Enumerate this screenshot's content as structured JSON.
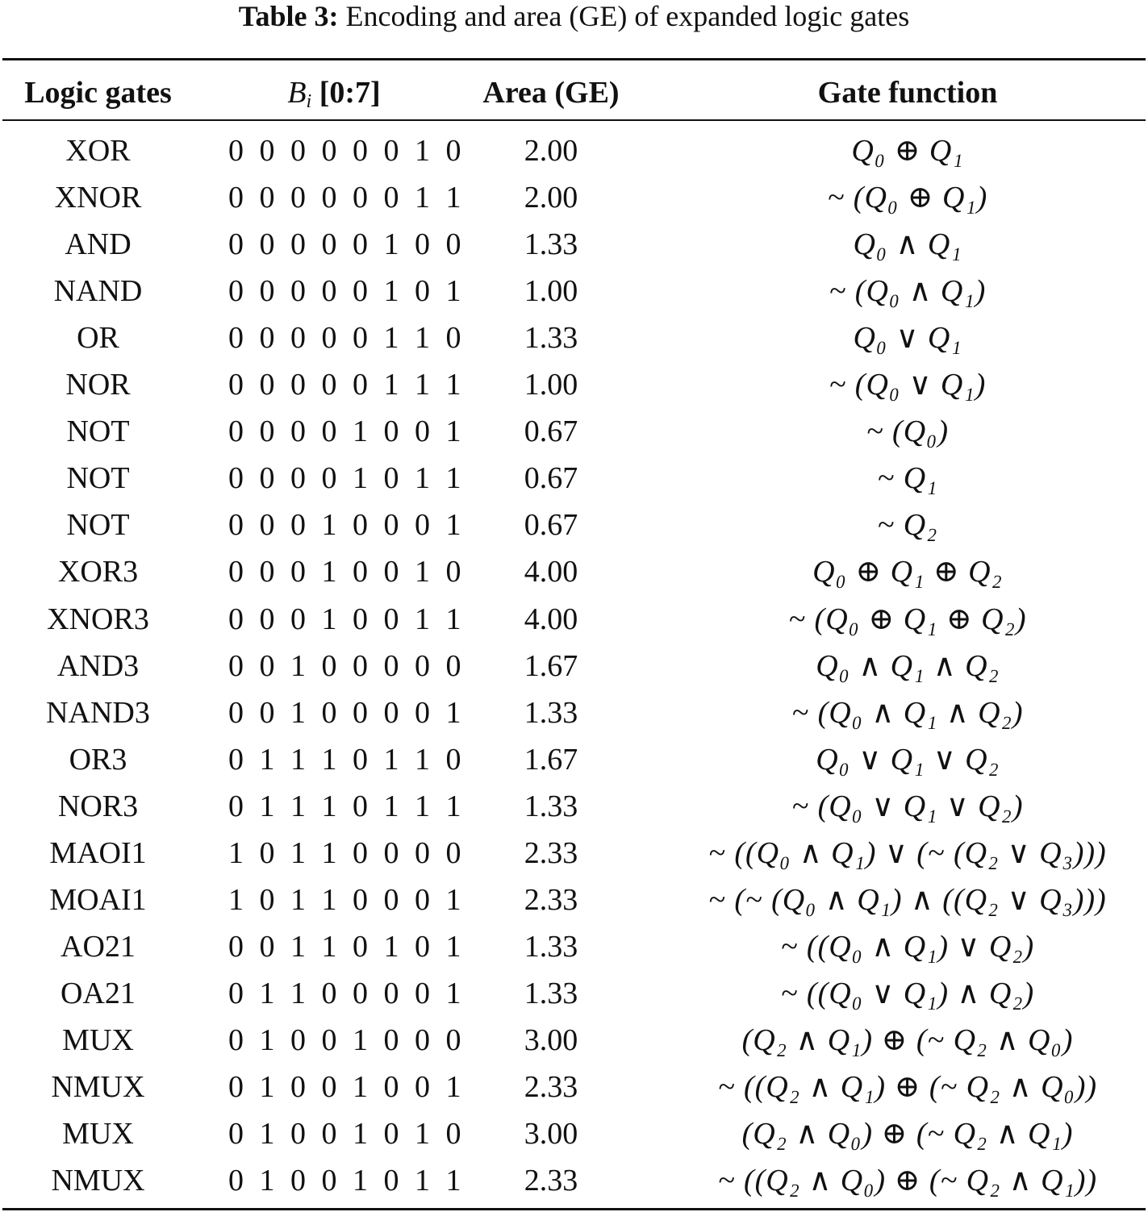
{
  "caption": {
    "label": "Table 3:",
    "text": "Encoding and area (GE) of expanded logic gates"
  },
  "table": {
    "headers": {
      "gate": "Logic gates",
      "bits_var": "B",
      "bits_sub": "i",
      "bits_range": " [0:7]",
      "area": "Area (GE)",
      "function": "Gate function"
    },
    "rows": [
      {
        "gate": "XOR",
        "bits": "0 0 0 0 0 0 1 0",
        "area": "2.00",
        "func": "Q₀ ⊕ Q₁"
      },
      {
        "gate": "XNOR",
        "bits": "0 0 0 0 0 0 1 1",
        "area": "2.00",
        "func": "~ (Q₀ ⊕ Q₁)"
      },
      {
        "gate": "AND",
        "bits": "0 0 0 0 0 1 0 0",
        "area": "1.33",
        "func": "Q₀ ∧ Q₁"
      },
      {
        "gate": "NAND",
        "bits": "0 0 0 0 0 1 0 1",
        "area": "1.00",
        "func": "~ (Q₀ ∧ Q₁)"
      },
      {
        "gate": "OR",
        "bits": "0 0 0 0 0 1 1 0",
        "area": "1.33",
        "func": "Q₀ ∨ Q₁"
      },
      {
        "gate": "NOR",
        "bits": "0 0 0 0 0 1 1 1",
        "area": "1.00",
        "func": "~ (Q₀ ∨ Q₁)"
      },
      {
        "gate": "NOT",
        "bits": "0 0 0 0 1 0 0 1",
        "area": "0.67",
        "func": "~ (Q₀)"
      },
      {
        "gate": "NOT",
        "bits": "0 0 0 0 1 0 1 1",
        "area": "0.67",
        "func": "~ Q₁"
      },
      {
        "gate": "NOT",
        "bits": "0 0 0 1 0 0 0 1",
        "area": "0.67",
        "func": "~ Q₂"
      },
      {
        "gate": "XOR3",
        "bits": "0 0 0 1 0 0 1 0",
        "area": "4.00",
        "func": "Q₀ ⊕ Q₁ ⊕ Q₂"
      },
      {
        "gate": "XNOR3",
        "bits": "0 0 0 1 0 0 1 1",
        "area": "4.00",
        "func": "~ (Q₀ ⊕ Q₁ ⊕ Q₂)"
      },
      {
        "gate": "AND3",
        "bits": "0 0 1 0 0 0 0 0",
        "area": "1.67",
        "func": "Q₀ ∧ Q₁ ∧ Q₂"
      },
      {
        "gate": "NAND3",
        "bits": "0 0 1 0 0 0 0 1",
        "area": "1.33",
        "func": "~ (Q₀ ∧ Q₁ ∧ Q₂)"
      },
      {
        "gate": "OR3",
        "bits": "0 1 1 1 0 1 1 0",
        "area": "1.67",
        "func": "Q₀ ∨ Q₁ ∨ Q₂"
      },
      {
        "gate": "NOR3",
        "bits": "0 1 1 1 0 1 1 1",
        "area": "1.33",
        "func": "~ (Q₀ ∨ Q₁ ∨ Q₂)"
      },
      {
        "gate": "MAOI1",
        "bits": "1 0 1 1 0 0 0 0",
        "area": "2.33",
        "func": "~ ((Q₀ ∧ Q₁) ∨ (~ (Q₂ ∨ Q₃)))"
      },
      {
        "gate": "MOAI1",
        "bits": "1 0 1 1 0 0 0 1",
        "area": "2.33",
        "func": "~ (~ (Q₀ ∧  Q₁) ∧ ((Q₂ ∨ Q₃)))"
      },
      {
        "gate": "AO21",
        "bits": "0 0 1 1 0 1 0 1",
        "area": "1.33",
        "func": "~ ((Q₀ ∧ Q₁) ∨ Q₂)"
      },
      {
        "gate": "OA21",
        "bits": "0 1 1 0 0 0 0 1",
        "area": "1.33",
        "func": "~ ((Q₀ ∨ Q₁) ∧ Q₂)"
      },
      {
        "gate": "MUX",
        "bits": "0 1 0 0 1 0 0 0",
        "area": "3.00",
        "func": "(Q₂ ∧ Q₁) ⊕ (~ Q₂ ∧ Q₀)"
      },
      {
        "gate": "NMUX",
        "bits": "0 1 0 0 1 0 0 1",
        "area": "2.33",
        "func": "~ ((Q₂ ∧ Q₁) ⊕ (~ Q₂ ∧ Q₀))"
      },
      {
        "gate": "MUX",
        "bits": "0 1 0 0 1 0 1 0",
        "area": "3.00",
        "func": "(Q₂ ∧ Q₀) ⊕ (~ Q₂ ∧ Q₁)"
      },
      {
        "gate": "NMUX",
        "bits": "0 1 0 0 1 0 1 1",
        "area": "2.33",
        "func": "~ ((Q₂ ∧ Q₀) ⊕ (~ Q₂ ∧ Q₁))"
      }
    ]
  }
}
